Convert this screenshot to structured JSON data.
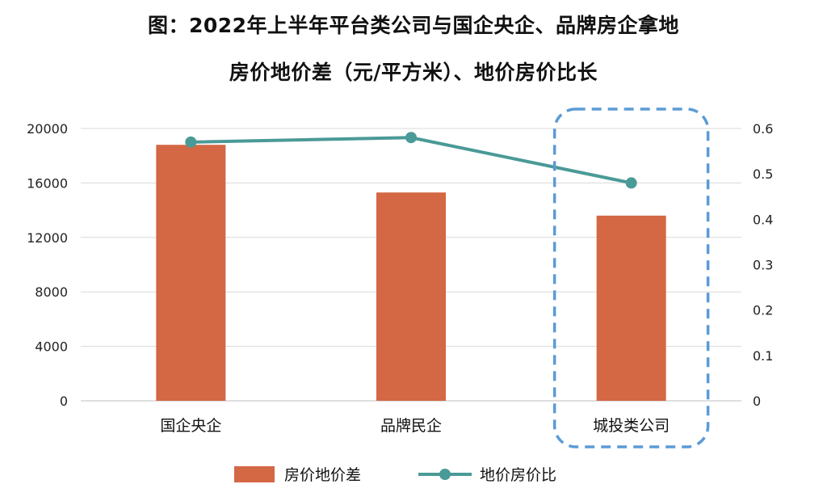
{
  "chart_data": {
    "type": "bar",
    "title_lines": [
      "图：2022年上半年平台类公司与国企央企、品牌房企拿地",
      "房价地价差（元/平方米）、地价房价比长"
    ],
    "categories": [
      "国企央企",
      "品牌民企",
      "城投类公司"
    ],
    "series": [
      {
        "name": "房价地价差",
        "type": "bar",
        "axis": "left",
        "color": "#D46744",
        "values": [
          18800,
          15300,
          13600
        ]
      },
      {
        "name": "地价房价比",
        "type": "line",
        "axis": "right",
        "color": "#4A9A97",
        "values": [
          0.57,
          0.58,
          0.48
        ]
      }
    ],
    "y_left": {
      "min": 0,
      "max": 20000,
      "ticks": [
        "0",
        "4000",
        "8000",
        "12000",
        "16000",
        "20000"
      ]
    },
    "y_right": {
      "min": 0,
      "max": 0.6,
      "ticks": [
        "0",
        "0.1",
        "0.2",
        "0.3",
        "0.4",
        "0.5",
        "0.6"
      ]
    },
    "grid": true,
    "legend_position": "bottom",
    "highlight_category": "城投类公司",
    "highlight_color": "#5B9BD5"
  }
}
